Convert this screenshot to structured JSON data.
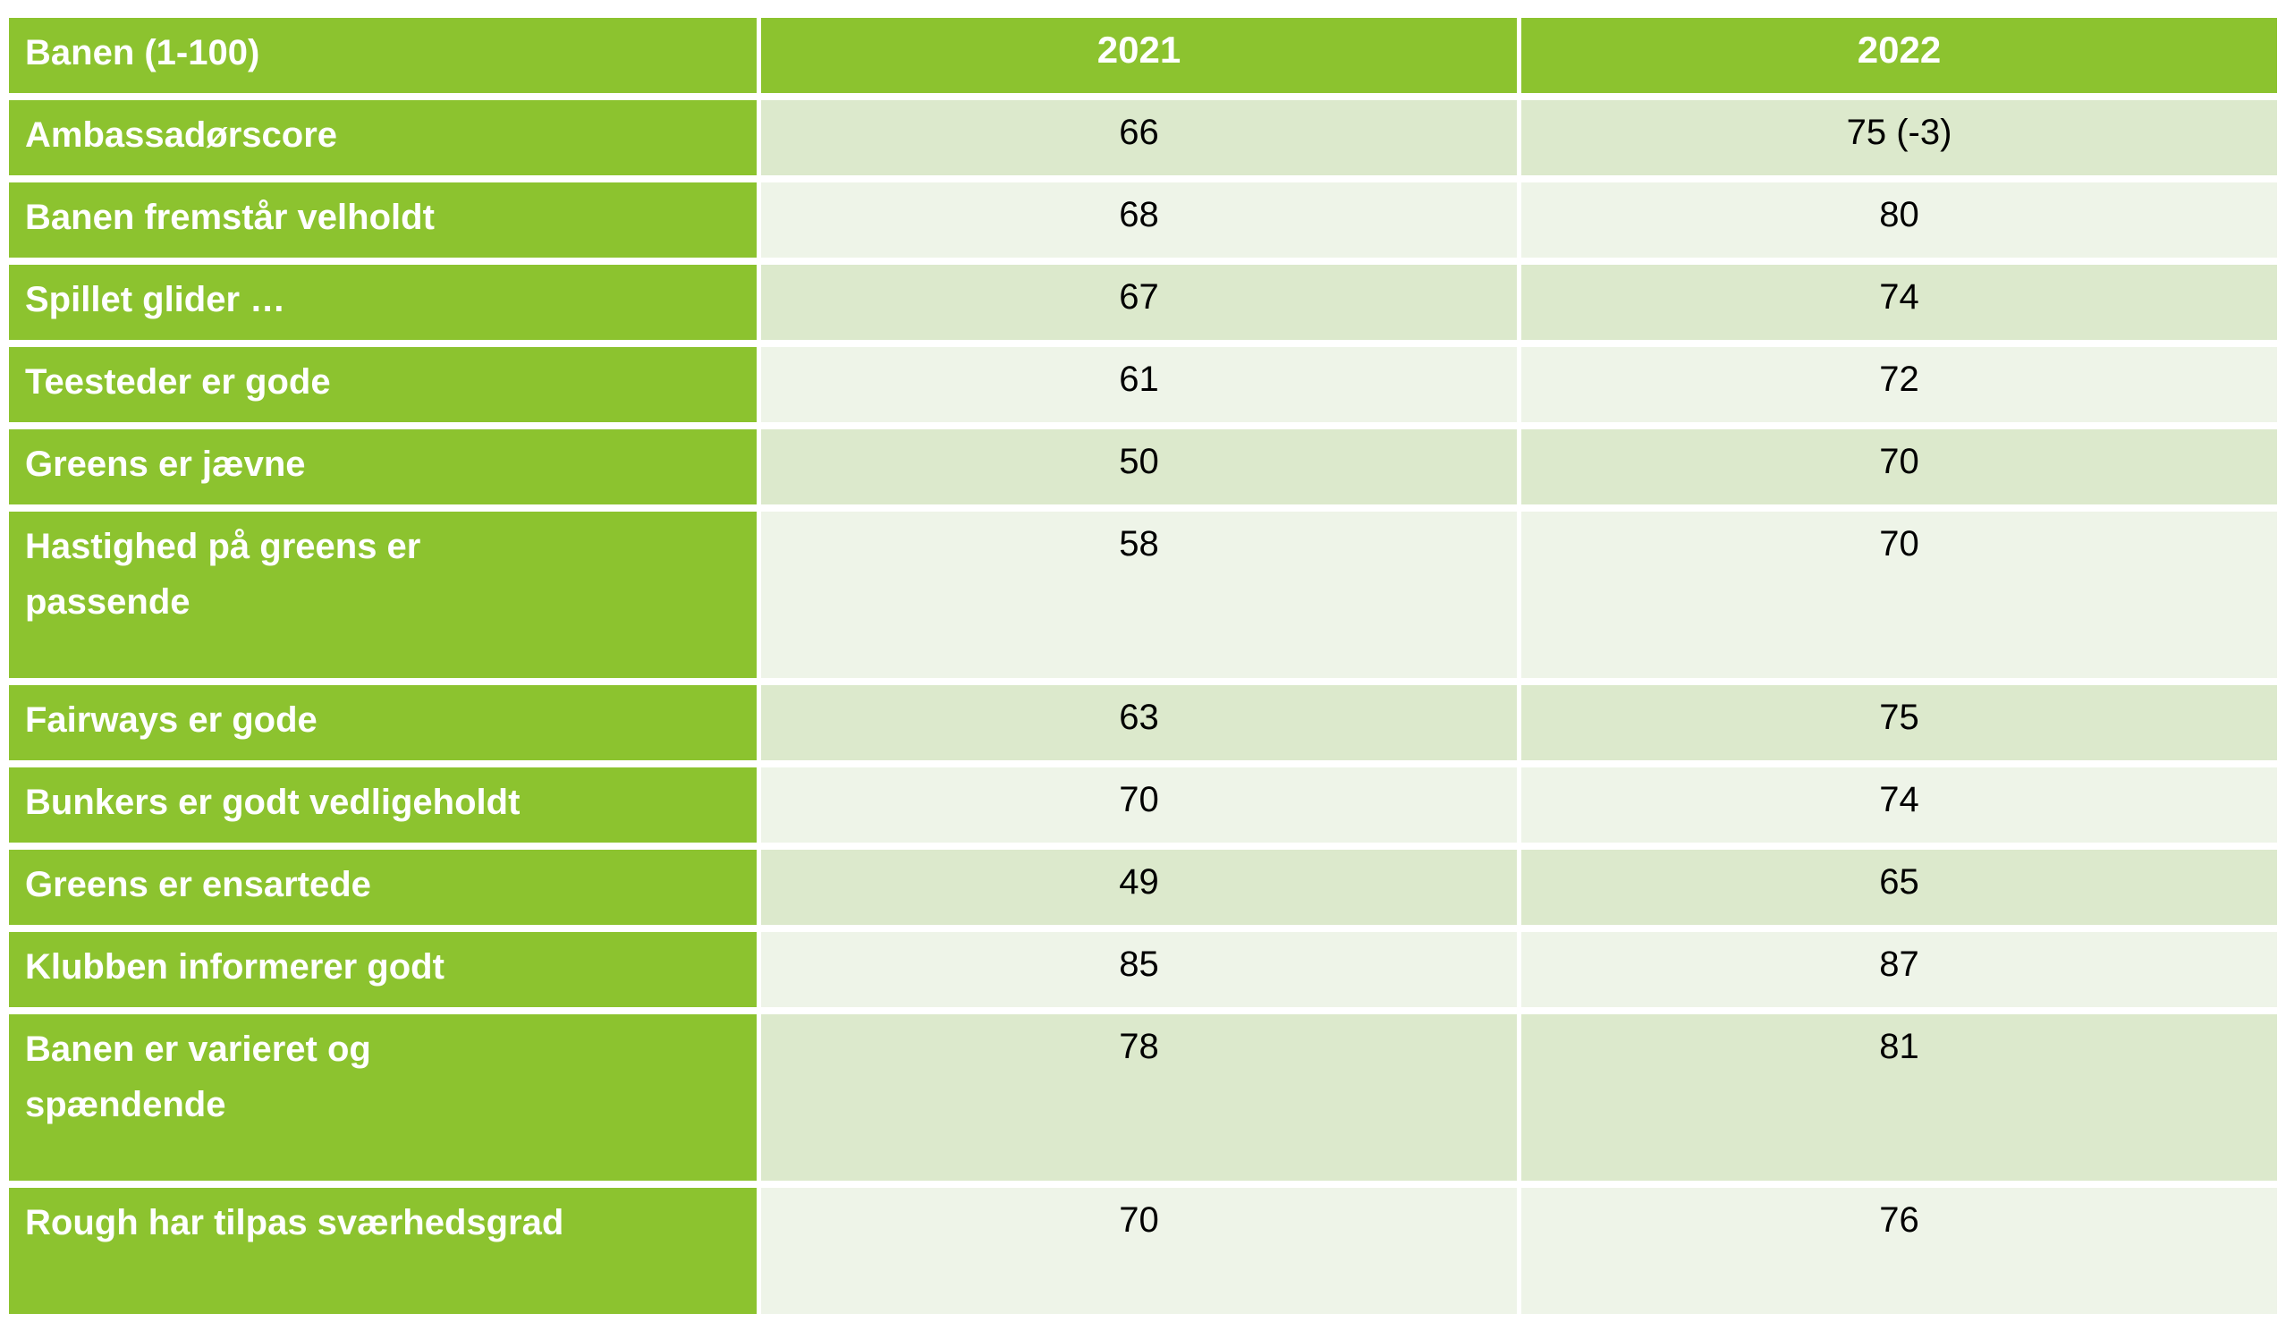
{
  "table": {
    "header": {
      "category": "Banen (1-100)",
      "col_2021": "2021",
      "col_2022": "2022"
    },
    "rows": [
      {
        "label": "Ambassadørscore",
        "v2021": "66",
        "v2022": "75 (-3)"
      },
      {
        "label": "Banen fremstår velholdt",
        "v2021": "68",
        "v2022": "80"
      },
      {
        "label": "Spillet glider …",
        "v2021": "67",
        "v2022": "74"
      },
      {
        "label": "Teesteder er gode",
        "v2021": "61",
        "v2022": "72"
      },
      {
        "label": "Greens er jævne",
        "v2021": "50",
        "v2022": "70"
      },
      {
        "label": "Hastighed på greens er\npassende",
        "v2021": "58",
        "v2022": "70"
      },
      {
        "label": "Fairways er gode",
        "v2021": "63",
        "v2022": "75"
      },
      {
        "label": "Bunkers er godt vedligeholdt",
        "v2021": "70",
        "v2022": "74"
      },
      {
        "label": "Greens er ensartede",
        "v2021": "49",
        "v2022": "65"
      },
      {
        "label": "Klubben informerer godt",
        "v2021": "85",
        "v2022": "87"
      },
      {
        "label": "Banen er varieret og\nspændende",
        "v2021": "78",
        "v2022": "81"
      },
      {
        "label": "Rough har tilpas sværhedsgrad",
        "v2021": "70",
        "v2022": "76"
      }
    ],
    "colors": {
      "header_green": "#8CC32F",
      "band_dark": "#DCE9CC",
      "band_light": "#EEF4E8",
      "header_text": "#FFFFFF",
      "value_text": "#000000"
    }
  },
  "chart_data": {
    "type": "table",
    "title": "Banen (1-100)",
    "categories": [
      "Ambassadørscore",
      "Banen fremstår velholdt",
      "Spillet glider …",
      "Teesteder er gode",
      "Greens er jævne",
      "Hastighed på greens er passende",
      "Fairways er gode",
      "Bunkers er godt vedligeholdt",
      "Greens er ensartede",
      "Klubben informerer godt",
      "Banen er varieret og spændende",
      "Rough har tilpas sværhedsgrad"
    ],
    "series": [
      {
        "name": "2021",
        "values": [
          66,
          68,
          67,
          61,
          50,
          58,
          63,
          70,
          49,
          85,
          78,
          70
        ]
      },
      {
        "name": "2022",
        "values": [
          75,
          80,
          74,
          72,
          70,
          70,
          75,
          74,
          65,
          87,
          81,
          76
        ]
      }
    ],
    "annotations": [
      "2022 value for Ambassadørscore is displayed as '75 (-3)'"
    ],
    "layout": {
      "banded_rows": true,
      "header_fill": "#8CC32F",
      "scale_note": "scores on a 1-100 scale"
    }
  }
}
